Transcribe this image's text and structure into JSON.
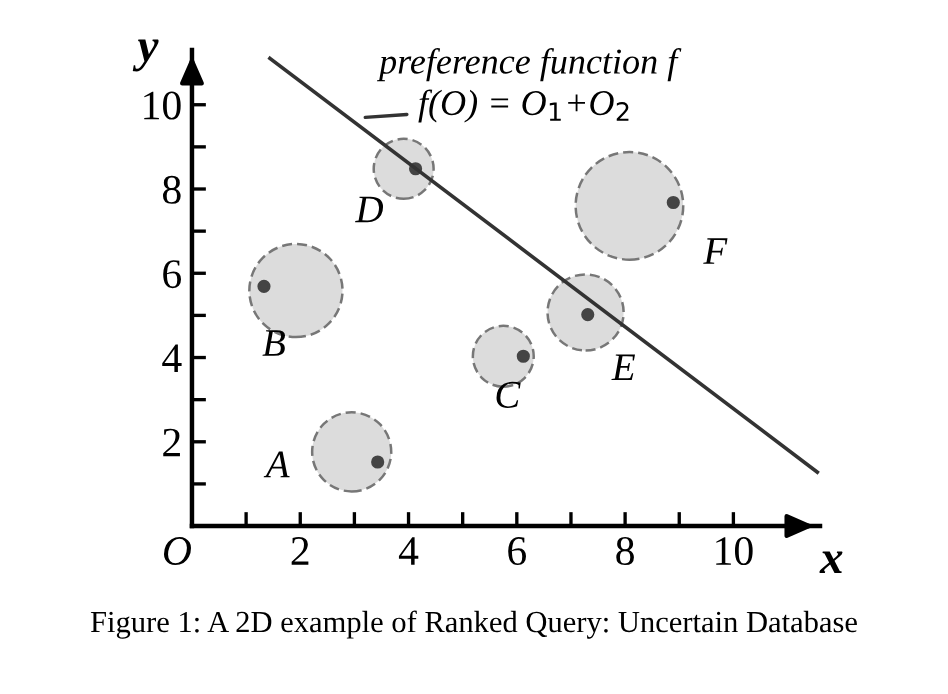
{
  "chart_data": {
    "type": "scatter",
    "xlabel": "x",
    "ylabel": "y",
    "xlim": [
      0,
      11.6
    ],
    "ylim": [
      0,
      11.3
    ],
    "xticks": [
      {
        "value": 0,
        "label": "O"
      },
      {
        "value": 1,
        "label": null
      },
      2,
      {
        "value": 3,
        "label": null
      },
      4,
      {
        "value": 5,
        "label": null
      },
      6,
      {
        "value": 7,
        "label": null
      },
      8,
      {
        "value": 9,
        "label": null
      },
      10
    ],
    "yticks": [
      {
        "value": 1,
        "label": null
      },
      2,
      {
        "value": 3,
        "label": null
      },
      4,
      {
        "value": 5,
        "label": null
      },
      6,
      {
        "value": 7,
        "label": null
      },
      8,
      {
        "value": 9,
        "label": null
      },
      10
    ],
    "grid": false,
    "series": [
      {
        "type": "bubble",
        "color": "#dcdcdc",
        "x": [
          2.95,
          1.92,
          5.75,
          3.91,
          7.27,
          8.08
        ],
        "values": [
          1.76,
          5.59,
          4.03,
          8.48,
          5.07,
          7.6
        ],
        "sizes": [
          0.54,
          0.75,
          0.32,
          0.31,
          0.5,
          1
        ]
      },
      {
        "color": "#444444",
        "marker": "circle",
        "x": [
          3.43,
          1.33,
          6.12,
          4.13,
          7.31,
          8.89
        ],
        "values": [
          1.52,
          5.69,
          4.03,
          8.48,
          5.02,
          7.68
        ]
      },
      {
        "type": "line",
        "color": "#333333",
        "x": [
          1.44,
          11.55
        ],
        "values": [
          11.1,
          1.28
        ]
      }
    ],
    "annotations": [
      {
        "text": "A",
        "x": 2.95,
        "y": 1.76
      },
      {
        "text": "B",
        "x": 1.33,
        "y": 5.69
      },
      {
        "text": "C",
        "x": 6.12,
        "y": 4.03
      },
      {
        "text": "D",
        "x": 4.13,
        "y": 8.48
      },
      {
        "text": "E",
        "x": 7.31,
        "y": 5.02
      },
      {
        "text": "F",
        "x": 8.89,
        "y": 7.68
      },
      {
        "text": "preference function f",
        "x": 3.2,
        "y": 9.7
      },
      {
        "text": "f(O) = O$_{1}$+O$_{2}$",
        "x": 3.2,
        "y": 9.7
      },
      "Figure 1: A 2D example of Ranked Query: Uncertain Database"
    ]
  }
}
